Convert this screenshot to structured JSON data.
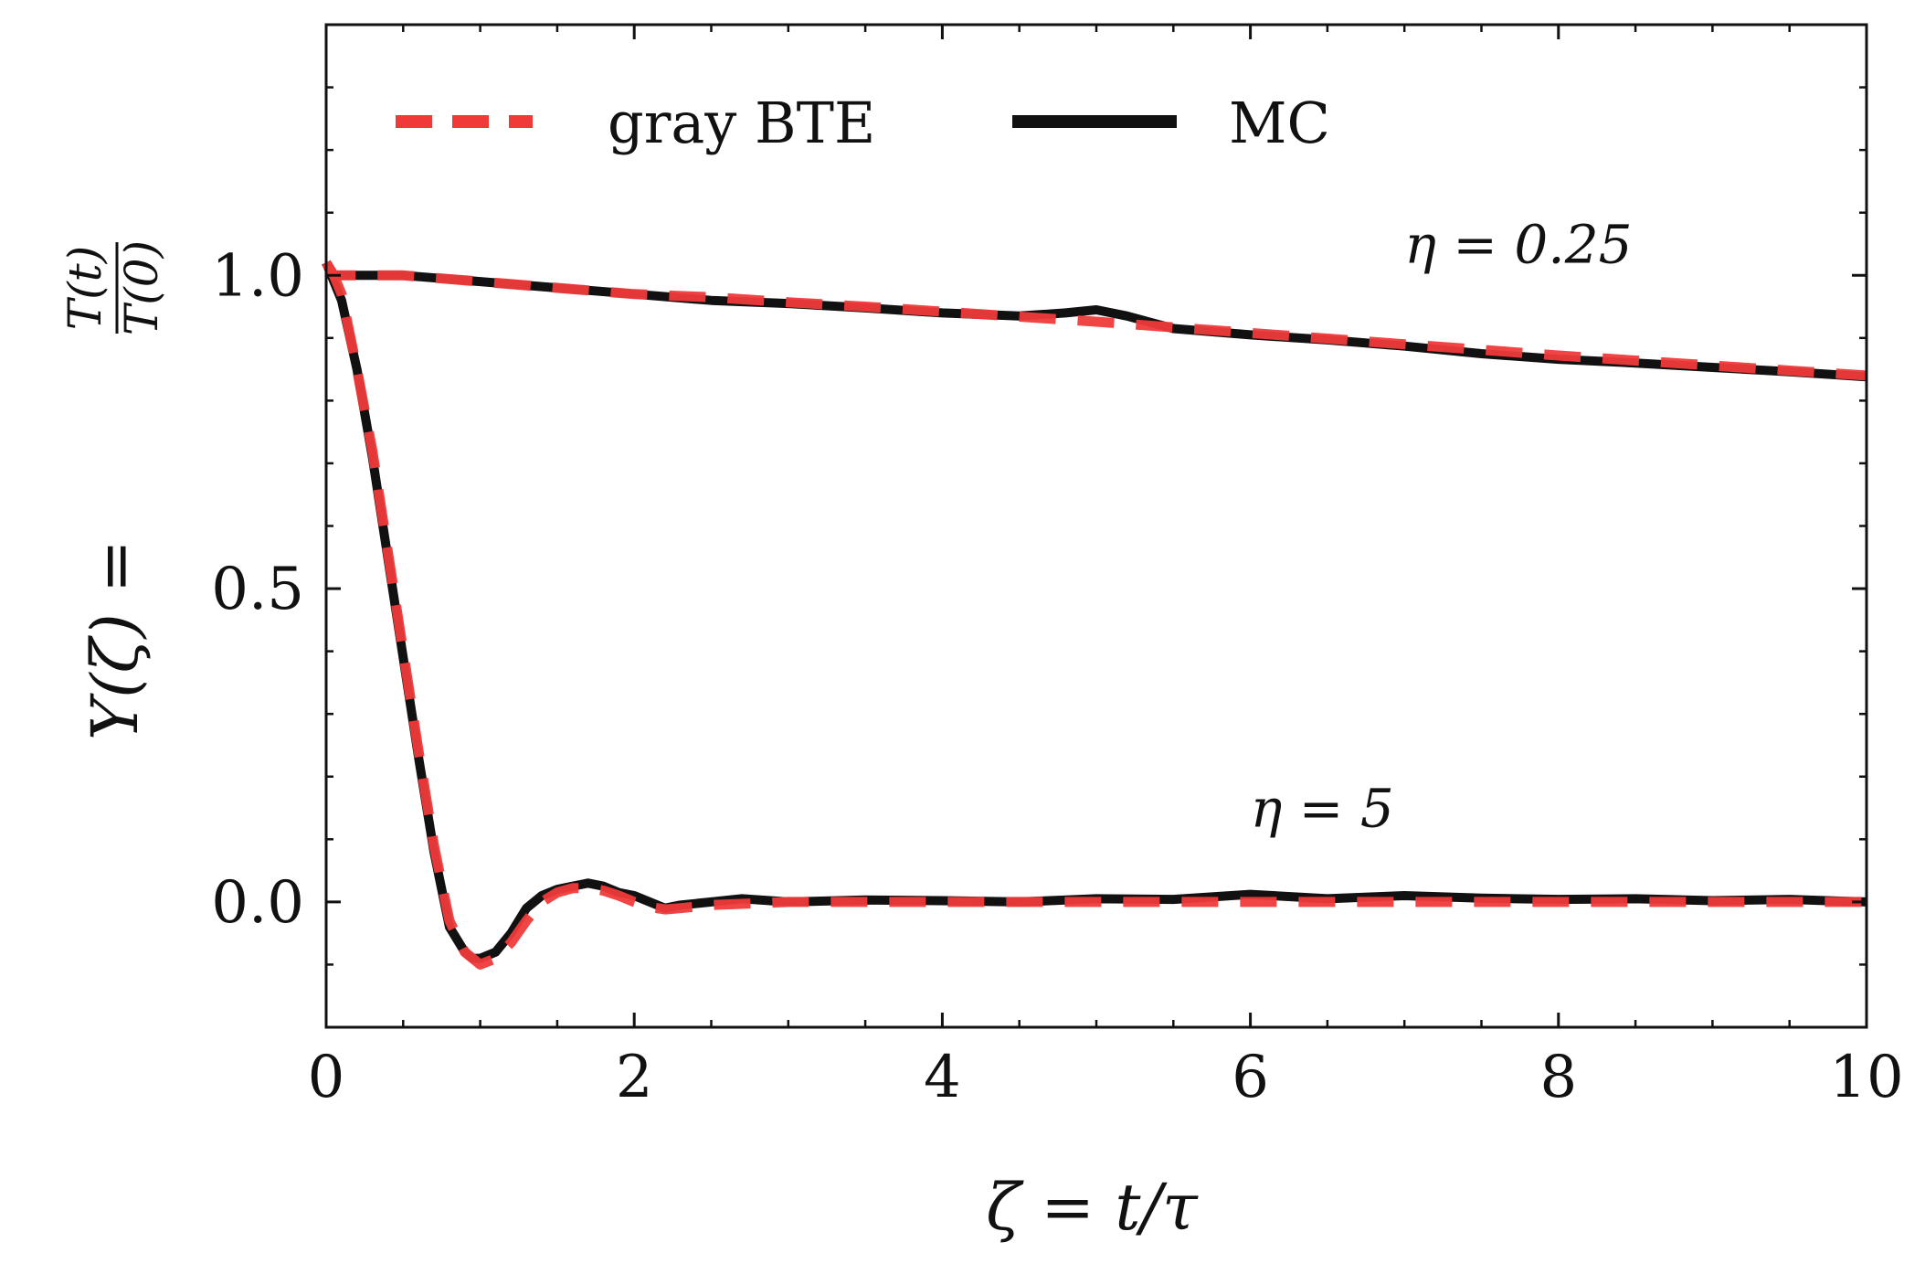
{
  "chart_data": {
    "type": "line",
    "xlabel": "ζ = t/τ",
    "ylabel_parts": {
      "lhs": "Υ(ζ) =",
      "numerator": "T(t)",
      "denominator": "T(0)"
    },
    "xlim": [
      0,
      10
    ],
    "ylim": [
      -0.2,
      1.4
    ],
    "xticks": [
      0,
      2,
      4,
      6,
      8,
      10
    ],
    "xtick_labels": [
      "0",
      "2",
      "4",
      "6",
      "8",
      "10"
    ],
    "yticks": [
      0.0,
      0.5,
      1.0
    ],
    "ytick_labels": [
      "0.0",
      "0.5",
      "1.0"
    ],
    "grid": false,
    "legend": {
      "placement": "top-left",
      "entries": [
        {
          "label": "gray BTE",
          "style": "dashed",
          "color": "#f03a3a"
        },
        {
          "label": "MC",
          "style": "solid",
          "color": "#111111"
        }
      ]
    },
    "annotations": [
      {
        "text": "η = 0.25",
        "x": 7.0,
        "y": 1.02
      },
      {
        "text": "η = 5",
        "x": 6.0,
        "y": 0.12
      }
    ],
    "series": [
      {
        "name": "gray BTE",
        "curve": "η = 0.25",
        "style": "dashed",
        "color": "#f03a3a",
        "x": [
          0,
          0.05,
          0.1,
          0.5,
          1,
          1.5,
          2,
          2.5,
          3,
          3.5,
          4,
          4.5,
          5,
          5.5,
          6,
          6.5,
          7,
          7.5,
          8,
          8.5,
          9,
          9.5,
          10
        ],
        "y": [
          1.02,
          1.0,
          1.0,
          1.0,
          0.99,
          0.98,
          0.97,
          0.965,
          0.957,
          0.95,
          0.942,
          0.934,
          0.926,
          0.917,
          0.908,
          0.899,
          0.89,
          0.881,
          0.872,
          0.864,
          0.856,
          0.848,
          0.84
        ]
      },
      {
        "name": "MC",
        "curve": "η = 0.25",
        "style": "solid",
        "color": "#111111",
        "x": [
          0,
          0.05,
          0.1,
          0.5,
          1,
          1.5,
          2,
          2.5,
          3,
          3.5,
          4,
          4.5,
          4.8,
          5,
          5.2,
          5.5,
          6,
          6.5,
          7,
          7.5,
          8,
          8.5,
          9,
          9.5,
          10
        ],
        "y": [
          1.02,
          1.0,
          1.0,
          1.0,
          0.99,
          0.98,
          0.97,
          0.96,
          0.955,
          0.948,
          0.94,
          0.935,
          0.94,
          0.945,
          0.935,
          0.915,
          0.905,
          0.897,
          0.887,
          0.875,
          0.866,
          0.86,
          0.853,
          0.846,
          0.838
        ]
      },
      {
        "name": "gray BTE",
        "curve": "η = 5",
        "style": "dashed",
        "color": "#f03a3a",
        "x": [
          0,
          0.05,
          0.1,
          0.2,
          0.3,
          0.4,
          0.5,
          0.6,
          0.7,
          0.8,
          0.9,
          1.0,
          1.1,
          1.2,
          1.3,
          1.4,
          1.5,
          1.6,
          1.7,
          1.8,
          1.9,
          2.0,
          2.1,
          2.2,
          2.3,
          2.5,
          3,
          3.5,
          4,
          5,
          6,
          7,
          8,
          9,
          10
        ],
        "y": [
          1.02,
          1.0,
          0.97,
          0.85,
          0.72,
          0.56,
          0.4,
          0.24,
          0.09,
          -0.03,
          -0.08,
          -0.1,
          -0.09,
          -0.065,
          -0.03,
          0.0,
          0.015,
          0.022,
          0.022,
          0.018,
          0.01,
          0.0,
          -0.008,
          -0.012,
          -0.01,
          -0.005,
          0.0,
          0.0,
          0.0,
          0.0,
          0.0,
          0.0,
          0.0,
          0.0,
          0.0
        ]
      },
      {
        "name": "MC",
        "curve": "η = 5",
        "style": "solid",
        "color": "#111111",
        "x": [
          0,
          0.05,
          0.1,
          0.2,
          0.3,
          0.4,
          0.5,
          0.6,
          0.7,
          0.8,
          0.9,
          0.95,
          1.0,
          1.1,
          1.2,
          1.3,
          1.4,
          1.5,
          1.6,
          1.7,
          1.8,
          1.9,
          2.0,
          2.1,
          2.2,
          2.3,
          2.5,
          2.7,
          3.0,
          3.5,
          4.0,
          4.5,
          5.0,
          5.5,
          6.0,
          6.5,
          7.0,
          7.5,
          8.0,
          8.5,
          9.0,
          9.5,
          10
        ],
        "y": [
          1.02,
          0.99,
          0.96,
          0.85,
          0.71,
          0.55,
          0.39,
          0.23,
          0.08,
          -0.04,
          -0.08,
          -0.09,
          -0.09,
          -0.08,
          -0.05,
          -0.01,
          0.01,
          0.02,
          0.025,
          0.03,
          0.025,
          0.015,
          0.01,
          0.0,
          -0.01,
          -0.005,
          0.0,
          0.005,
          0.0,
          0.003,
          0.002,
          0.0,
          0.005,
          0.004,
          0.012,
          0.005,
          0.01,
          0.006,
          0.004,
          0.005,
          0.002,
          0.004,
          0.0
        ]
      }
    ]
  }
}
